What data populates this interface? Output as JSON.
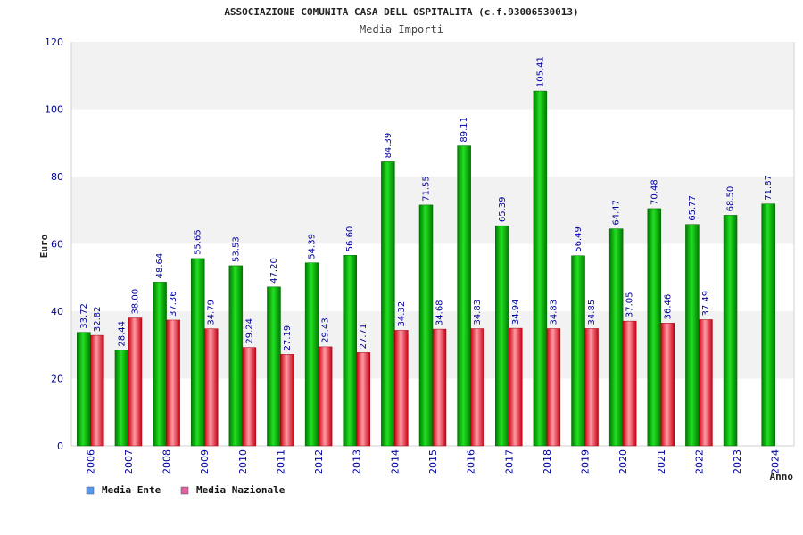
{
  "chart_data": {
    "type": "bar",
    "title": "ASSOCIAZIONE COMUNITA CASA DELL OSPITALITA (c.f.93006530013)",
    "subtitle": "Media Importi",
    "xlabel": "Anno",
    "ylabel": "Euro",
    "ylim": [
      0,
      120
    ],
    "yticks": [
      0,
      20,
      40,
      60,
      80,
      100,
      120
    ],
    "grid": true,
    "legend_position": "bottom-left",
    "categories": [
      "2006",
      "2007",
      "2008",
      "2009",
      "2010",
      "2011",
      "2012",
      "2013",
      "2014",
      "2015",
      "2016",
      "2017",
      "2018",
      "2019",
      "2020",
      "2021",
      "2022",
      "2023",
      "2024"
    ],
    "series": [
      {
        "name": "Media Ente",
        "color": "#00b400",
        "legend_color": "#5599ee",
        "values": [
          33.72,
          28.44,
          48.64,
          55.65,
          53.53,
          47.2,
          54.39,
          56.6,
          84.39,
          71.55,
          89.11,
          65.39,
          105.41,
          56.49,
          64.47,
          70.48,
          65.77,
          68.5,
          71.87
        ],
        "labels": [
          "33.72",
          "28.44",
          "48.64",
          "55.65",
          "53.53",
          "47.20",
          "54.39",
          "56.60",
          "84.39",
          "71.55",
          "89.11",
          "65.39",
          "105.41",
          "56.49",
          "64.47",
          "70.48",
          "65.77",
          "68.50",
          "71.87"
        ]
      },
      {
        "name": "Media Nazionale",
        "color": "#e02020",
        "legend_color": "#e060a0",
        "values": [
          32.82,
          38.0,
          37.36,
          34.79,
          29.24,
          27.19,
          29.43,
          27.71,
          34.32,
          34.68,
          34.83,
          34.94,
          34.83,
          34.85,
          37.05,
          36.46,
          37.49,
          null,
          null
        ],
        "labels": [
          "32.82",
          "38.00",
          "37.36",
          "34.79",
          "29.24",
          "27.19",
          "29.43",
          "27.71",
          "34.32",
          "34.68",
          "34.83",
          "34.94",
          "34.83",
          "34.85",
          "37.05",
          "36.46",
          "37.49",
          null,
          null
        ]
      }
    ]
  }
}
